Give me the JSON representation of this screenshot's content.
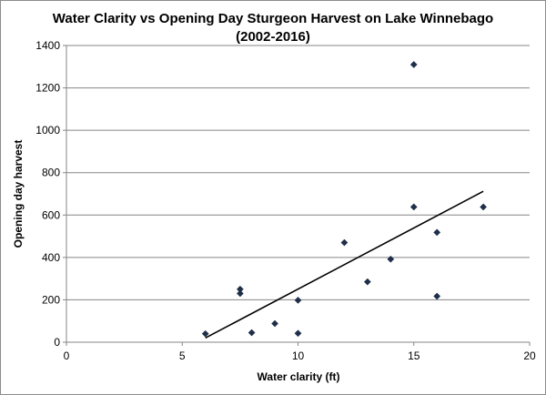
{
  "chart_data": {
    "type": "scatter",
    "title_line1": "Water Clarity vs Opening Day Sturgeon Harvest on Lake Winnebago",
    "title_line2": "(2002-2016)",
    "xlabel": "Water clarity (ft)",
    "ylabel": "Opening day harvest",
    "xlim": [
      0,
      20
    ],
    "ylim": [
      0,
      1400
    ],
    "x_ticks": [
      0,
      5,
      10,
      15,
      20
    ],
    "y_ticks": [
      0,
      200,
      400,
      600,
      800,
      1000,
      1200,
      1400
    ],
    "grid": {
      "horizontal": true,
      "vertical": false
    },
    "legend": "none",
    "marker_color": "#1f2f4a",
    "trendline_color": "#000000",
    "points": [
      {
        "x": 6,
        "y": 40
      },
      {
        "x": 7.5,
        "y": 250
      },
      {
        "x": 7.5,
        "y": 230
      },
      {
        "x": 8,
        "y": 45
      },
      {
        "x": 9,
        "y": 88
      },
      {
        "x": 10,
        "y": 198
      },
      {
        "x": 10,
        "y": 42
      },
      {
        "x": 12,
        "y": 470
      },
      {
        "x": 13,
        "y": 285
      },
      {
        "x": 14,
        "y": 392
      },
      {
        "x": 15,
        "y": 1310
      },
      {
        "x": 15,
        "y": 638
      },
      {
        "x": 16,
        "y": 518
      },
      {
        "x": 16,
        "y": 217
      },
      {
        "x": 18,
        "y": 638
      }
    ],
    "trendline": {
      "x_start": 6,
      "y_start": 20,
      "x_end": 18,
      "y_end": 712
    }
  }
}
